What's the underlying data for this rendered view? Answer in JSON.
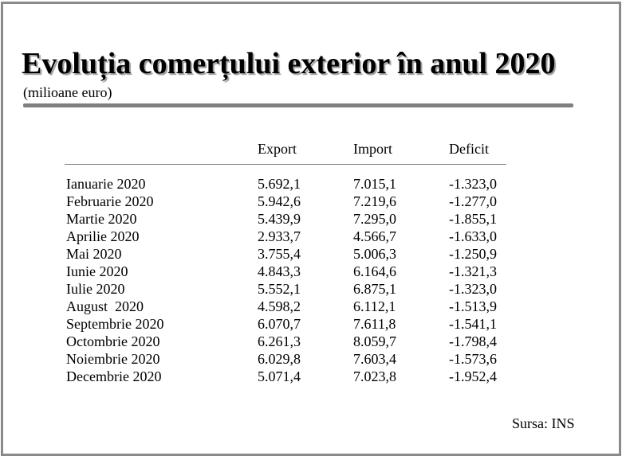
{
  "title": "Evoluția comerțului exterior în anul 2020",
  "subtitle": "(milioane euro)",
  "table": {
    "headers": [
      "Export",
      "Import",
      "Deficit"
    ],
    "rows": [
      {
        "month": "Ianuarie 2020",
        "export": "5.692,1",
        "import": "7.015,1",
        "deficit": "-1.323,0"
      },
      {
        "month": "Februarie 2020",
        "export": "5.942,6",
        "import": "7.219,6",
        "deficit": "-1.277,0"
      },
      {
        "month": "Martie 2020",
        "export": "5.439,9",
        "import": "7.295,0",
        "deficit": "-1.855,1"
      },
      {
        "month": "Aprilie 2020",
        "export": "2.933,7",
        "import": "4.566,7",
        "deficit": "-1.633,0"
      },
      {
        "month": "Mai 2020",
        "export": "3.755,4",
        "import": "5.006,3",
        "deficit": "-1.250,9"
      },
      {
        "month": "Iunie 2020",
        "export": "4.843,3",
        "import": "6.164,6",
        "deficit": "-1.321,3"
      },
      {
        "month": "Iulie 2020",
        "export": "5.552,1",
        "import": "6.875,1",
        "deficit": "-1.323,0"
      },
      {
        "month": "August  2020",
        "export": "4.598,2",
        "import": "6.112,1",
        "deficit": "-1.513,9"
      },
      {
        "month": "Septembrie 2020",
        "export": "6.070,7",
        "import": "7.611,8",
        "deficit": "-1.541,1"
      },
      {
        "month": "Octombrie 2020",
        "export": "6.261,3",
        "import": "8.059,7",
        "deficit": "-1.798,4"
      },
      {
        "month": "Noiembrie 2020",
        "export": "6.029,8",
        "import": "7.603,4",
        "deficit": "-1.573,6"
      },
      {
        "month": "Decembrie 2020",
        "export": "5.071,4",
        "import": "7.023,8",
        "deficit": "-1.952,4"
      }
    ]
  },
  "source": "Sursa: INS",
  "colors": {
    "frame": "#8a8a8a",
    "rule": "#7f7f7f",
    "title_shadow": "#9a9a9a"
  }
}
